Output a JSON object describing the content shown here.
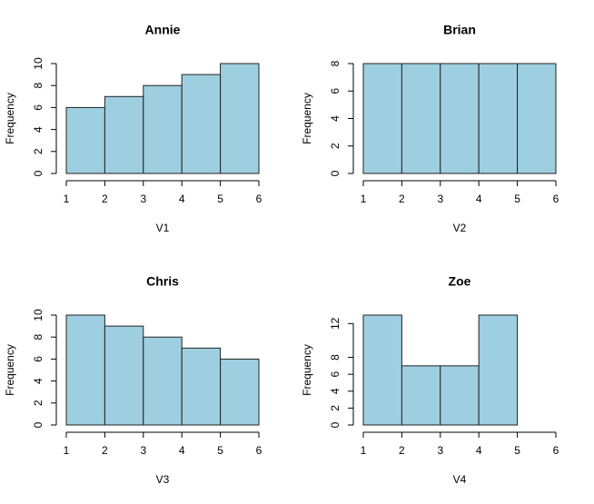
{
  "chart_data": [
    {
      "type": "histogram",
      "title": "Annie",
      "xlabel": "V1",
      "ylabel": "Frequency",
      "color": "#9ecfe0",
      "bins": [
        1,
        2,
        3,
        4,
        5,
        6
      ],
      "values": [
        6,
        7,
        8,
        9,
        10
      ],
      "xlim": [
        1,
        6
      ],
      "xticks": [
        1,
        2,
        3,
        4,
        5,
        6
      ],
      "ylim": [
        0,
        10
      ],
      "yticks": [
        0,
        2,
        4,
        6,
        8,
        10
      ]
    },
    {
      "type": "histogram",
      "title": "Brian",
      "xlabel": "V2",
      "ylabel": "Frequency",
      "color": "#9ecfe0",
      "bins": [
        1,
        2,
        3,
        4,
        5,
        6
      ],
      "values": [
        8,
        8,
        8,
        8,
        8
      ],
      "xlim": [
        1,
        6
      ],
      "xticks": [
        1,
        2,
        3,
        4,
        5,
        6
      ],
      "ylim": [
        0,
        8
      ],
      "yticks": [
        0,
        2,
        4,
        6,
        8
      ]
    },
    {
      "type": "histogram",
      "title": "Chris",
      "xlabel": "V3",
      "ylabel": "Frequency",
      "color": "#9ecfe0",
      "bins": [
        1,
        2,
        3,
        4,
        5,
        6
      ],
      "values": [
        10,
        9,
        8,
        7,
        6
      ],
      "xlim": [
        1,
        6
      ],
      "xticks": [
        1,
        2,
        3,
        4,
        5,
        6
      ],
      "ylim": [
        0,
        10
      ],
      "yticks": [
        0,
        2,
        4,
        6,
        8,
        10
      ]
    },
    {
      "type": "histogram",
      "title": "Zoe",
      "xlabel": "V4",
      "ylabel": "Frequency",
      "color": "#9ecfe0",
      "bins": [
        1,
        2,
        3,
        4,
        5,
        6
      ],
      "values": [
        13,
        7,
        7,
        13,
        0
      ],
      "xlim": [
        1,
        6
      ],
      "xticks": [
        1,
        2,
        3,
        4,
        5,
        6
      ],
      "ylim": [
        0,
        13
      ],
      "yticks": [
        0,
        2,
        4,
        6,
        8,
        12
      ]
    }
  ]
}
